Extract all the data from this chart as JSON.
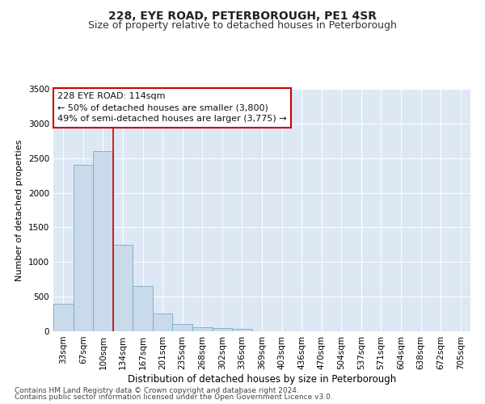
{
  "title": "228, EYE ROAD, PETERBOROUGH, PE1 4SR",
  "subtitle": "Size of property relative to detached houses in Peterborough",
  "xlabel": "Distribution of detached houses by size in Peterborough",
  "ylabel": "Number of detached properties",
  "categories": [
    "33sqm",
    "67sqm",
    "100sqm",
    "134sqm",
    "167sqm",
    "201sqm",
    "235sqm",
    "268sqm",
    "302sqm",
    "336sqm",
    "369sqm",
    "403sqm",
    "436sqm",
    "470sqm",
    "504sqm",
    "537sqm",
    "571sqm",
    "604sqm",
    "638sqm",
    "672sqm",
    "705sqm"
  ],
  "values": [
    400,
    2400,
    2600,
    1250,
    650,
    260,
    105,
    60,
    50,
    40,
    5,
    0,
    0,
    0,
    0,
    0,
    0,
    0,
    0,
    0,
    0
  ],
  "bar_color": "#c9daea",
  "bar_edge_color": "#7aaac8",
  "vline_color": "#cc0000",
  "vline_x": 2,
  "ylim": [
    0,
    3500
  ],
  "yticks": [
    0,
    500,
    1000,
    1500,
    2000,
    2500,
    3000,
    3500
  ],
  "annotation_line1": "228 EYE ROAD: 114sqm",
  "annotation_line2": "← 50% of detached houses are smaller (3,800)",
  "annotation_line3": "49% of semi-detached houses are larger (3,775) →",
  "annotation_box_color": "#ffffff",
  "annotation_box_edge": "#cc0000",
  "footer_line1": "Contains HM Land Registry data © Crown copyright and database right 2024.",
  "footer_line2": "Contains public sector information licensed under the Open Government Licence v3.0.",
  "background_color": "#ffffff",
  "grid_color": "#dde8f4",
  "title_fontsize": 10,
  "subtitle_fontsize": 9,
  "tick_fontsize": 7.5,
  "ylabel_fontsize": 8,
  "xlabel_fontsize": 8.5,
  "annot_fontsize": 8,
  "footer_fontsize": 6.5
}
